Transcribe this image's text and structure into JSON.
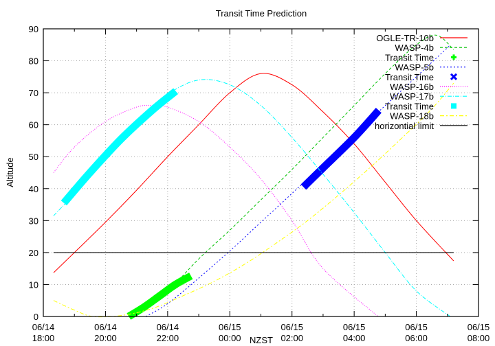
{
  "chart_data": {
    "type": "line",
    "title": "Transit Time Prediction",
    "xlabel": "NZST",
    "ylabel": "Altitude",
    "ylim": [
      0,
      90
    ],
    "xlim_hours_from_start": [
      0,
      14
    ],
    "x_ticks": [
      {
        "date": "06/14",
        "time": "18:00"
      },
      {
        "date": "06/14",
        "time": "20:00"
      },
      {
        "date": "06/14",
        "time": "22:00"
      },
      {
        "date": "06/15",
        "time": "00:00"
      },
      {
        "date": "06/15",
        "time": "02:00"
      },
      {
        "date": "06/15",
        "time": "04:00"
      },
      {
        "date": "06/15",
        "time": "06:00"
      },
      {
        "date": "06/15",
        "time": "08:00"
      }
    ],
    "y_ticks": [
      0,
      10,
      20,
      30,
      40,
      50,
      60,
      70,
      80,
      90
    ],
    "grid": true,
    "legend_position": "top-right",
    "series": [
      {
        "name": "OGLE-TR-10b",
        "color": "#ff0000",
        "style": "solid",
        "points": [
          [
            0.33,
            13.7
          ],
          [
            1,
            20
          ],
          [
            2,
            29.5
          ],
          [
            3,
            39.5
          ],
          [
            4,
            50
          ],
          [
            5,
            60
          ],
          [
            6,
            70
          ],
          [
            7,
            76
          ],
          [
            8,
            72.5
          ],
          [
            9,
            64
          ],
          [
            10,
            54
          ],
          [
            11,
            42
          ],
          [
            12,
            30
          ],
          [
            13.2,
            17.4
          ]
        ]
      },
      {
        "name": "WASP-4b",
        "color": "#00c000",
        "style": "dashed",
        "points": [
          [
            2.9,
            0
          ],
          [
            4,
            8
          ],
          [
            5,
            18
          ],
          [
            6,
            27
          ],
          [
            7,
            36.5
          ],
          [
            8,
            46
          ],
          [
            9,
            56
          ],
          [
            10,
            66
          ],
          [
            11,
            76
          ],
          [
            12,
            85
          ],
          [
            12.65,
            88
          ],
          [
            13.2,
            83.5
          ]
        ]
      },
      {
        "name": "Transit Time",
        "color": "#00ff00",
        "style": "marker",
        "marker": "plus",
        "ref": "WASP-4b",
        "points": [
          [
            2.75,
            0
          ],
          [
            3.25,
            3
          ],
          [
            3.75,
            6.5
          ],
          [
            4.25,
            10
          ],
          [
            4.75,
            12.7
          ]
        ]
      },
      {
        "name": "WASP-5b",
        "color": "#0000ff",
        "style": "dotted",
        "points": [
          [
            3.3,
            0
          ],
          [
            4,
            4
          ],
          [
            5,
            12
          ],
          [
            6,
            20.5
          ],
          [
            7,
            29.5
          ],
          [
            8,
            38.5
          ],
          [
            9,
            47.5
          ],
          [
            10,
            57
          ],
          [
            11,
            66
          ],
          [
            12,
            75
          ],
          [
            13.1,
            85
          ]
        ]
      },
      {
        "name": "Transit Time",
        "color": "#0000ff",
        "style": "marker",
        "marker": "cross",
        "ref": "WASP-5b",
        "points": [
          [
            8.37,
            40.5
          ],
          [
            9,
            46.5
          ],
          [
            10,
            56
          ],
          [
            10.79,
            64.5
          ]
        ]
      },
      {
        "name": "WASP-16b",
        "color": "#ff00ff",
        "style": "dotted",
        "points": [
          [
            0.33,
            45
          ],
          [
            1,
            53
          ],
          [
            2,
            61
          ],
          [
            3,
            65.5
          ],
          [
            3.5,
            66
          ],
          [
            4,
            65.5
          ],
          [
            5,
            61
          ],
          [
            6,
            53
          ],
          [
            7,
            43
          ],
          [
            8,
            30
          ],
          [
            9,
            15
          ],
          [
            10.77,
            0
          ]
        ]
      },
      {
        "name": "WASP-17b",
        "color": "#00ffff",
        "style": "dashdot",
        "points": [
          [
            0.33,
            31.5
          ],
          [
            1,
            38.5
          ],
          [
            2,
            50
          ],
          [
            3,
            61
          ],
          [
            4,
            69.5
          ],
          [
            5,
            74
          ],
          [
            6,
            72.5
          ],
          [
            7,
            66
          ],
          [
            8,
            56
          ],
          [
            9,
            44.5
          ],
          [
            10,
            32.5
          ],
          [
            11,
            20
          ],
          [
            12,
            8
          ],
          [
            13.09,
            0
          ]
        ]
      },
      {
        "name": "Transit Time",
        "color": "#00ffff",
        "style": "marker",
        "marker": "square",
        "ref": "WASP-17b",
        "points": [
          [
            0.66,
            35.5
          ],
          [
            1.5,
            45
          ],
          [
            2.5,
            55.5
          ],
          [
            3.5,
            64.5
          ],
          [
            4.26,
            70.5
          ]
        ]
      },
      {
        "name": "WASP-18b",
        "color": "#ffff00",
        "style": "dashdot",
        "points": [
          [
            0.33,
            5
          ],
          [
            1,
            2
          ],
          [
            1.6,
            0
          ],
          [
            2.5,
            0.3
          ],
          [
            3.5,
            2.5
          ],
          [
            4.5,
            6.5
          ],
          [
            5.5,
            11
          ],
          [
            6.5,
            16.5
          ],
          [
            7.5,
            23
          ],
          [
            8.5,
            30
          ],
          [
            9.5,
            38
          ],
          [
            10.5,
            46.5
          ],
          [
            11.5,
            55.5
          ],
          [
            12.5,
            65
          ],
          [
            13.2,
            73
          ]
        ]
      },
      {
        "name": "horizontial limit",
        "color": "#000000",
        "style": "solid",
        "points": [
          [
            0.33,
            20
          ],
          [
            13.2,
            20
          ]
        ]
      }
    ]
  },
  "legend": [
    {
      "label": "OGLE-TR-10b",
      "kind": "line",
      "color": "#ff0000",
      "dash": ""
    },
    {
      "label": "WASP-4b",
      "kind": "line",
      "color": "#00c000",
      "dash": "4,3"
    },
    {
      "label": "Transit Time",
      "kind": "plus",
      "color": "#00ff00",
      "dash": ""
    },
    {
      "label": "WASP-5b",
      "kind": "line",
      "color": "#0000ff",
      "dash": "2,3"
    },
    {
      "label": "Transit Time",
      "kind": "cross",
      "color": "#0000ff",
      "dash": ""
    },
    {
      "label": "WASP-16b",
      "kind": "line",
      "color": "#ff00ff",
      "dash": "1,2"
    },
    {
      "label": "WASP-17b",
      "kind": "line",
      "color": "#00ffff",
      "dash": "6,2,1,2"
    },
    {
      "label": "Transit Time",
      "kind": "square",
      "color": "#00ffff",
      "dash": ""
    },
    {
      "label": "WASP-18b",
      "kind": "line",
      "color": "#ffff00",
      "dash": "6,3,2,3"
    },
    {
      "label": "horizontial limit",
      "kind": "line",
      "color": "#000000",
      "dash": ""
    }
  ]
}
